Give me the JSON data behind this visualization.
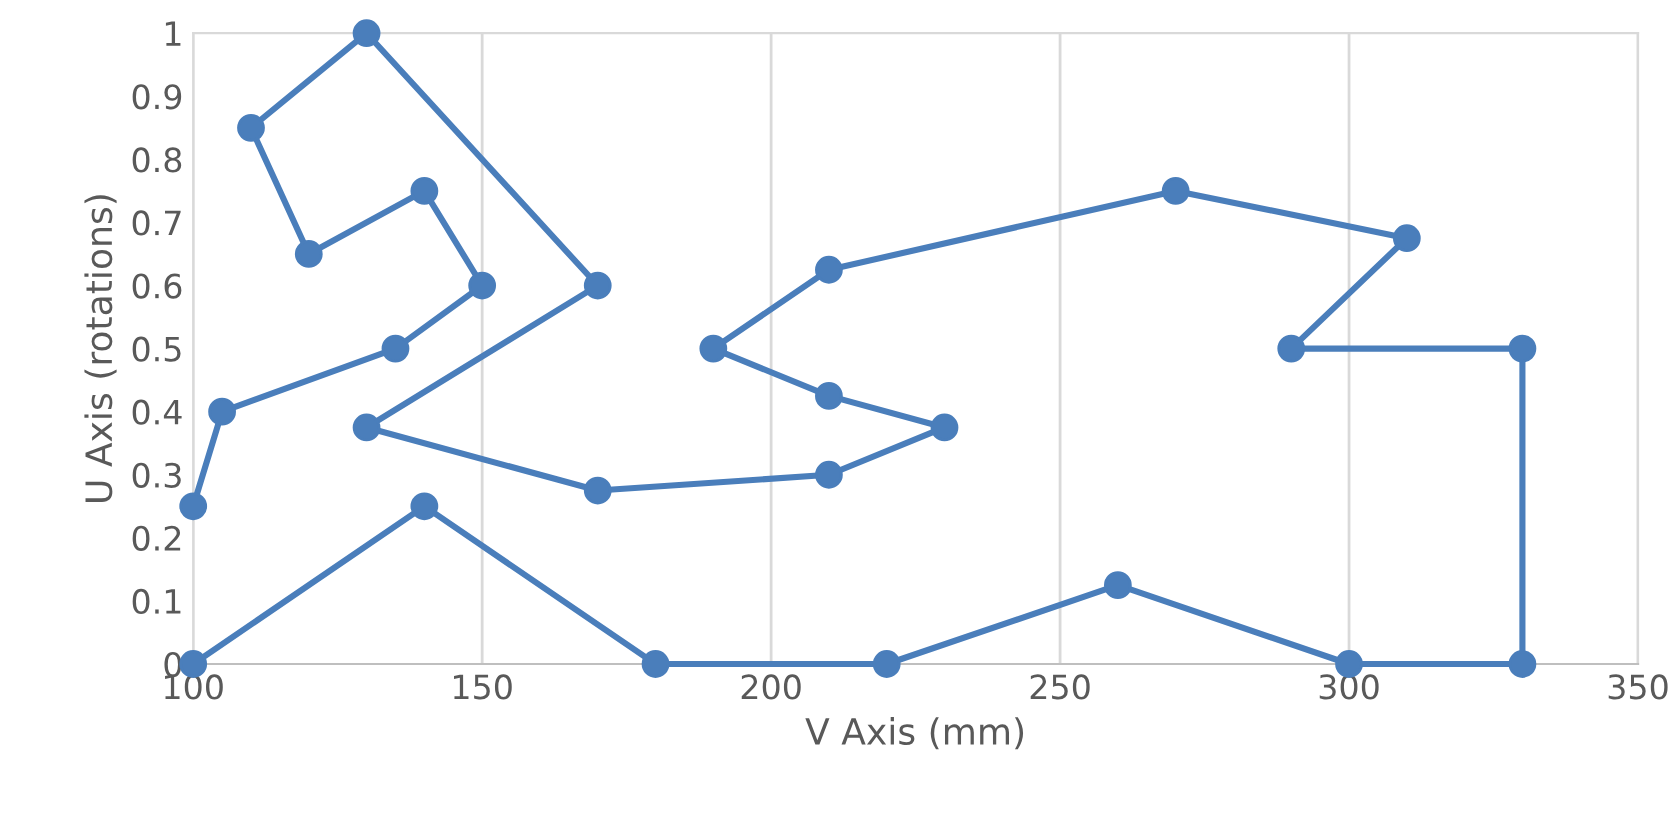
{
  "chart_data": {
    "type": "line",
    "xlabel": "V Axis (mm)",
    "ylabel": "U Axis (rotations)",
    "x": [
      100,
      140,
      180,
      220,
      260,
      300,
      330,
      330,
      290,
      310,
      270,
      210,
      190,
      210,
      230,
      210,
      170,
      130,
      170,
      130,
      110,
      120,
      140,
      150,
      135,
      105,
      100
    ],
    "series": [
      {
        "color": "#4a7ebb",
        "values": [
          0,
          0.25,
          0,
          0,
          0.125,
          0,
          0,
          0.5,
          0.5,
          0.675,
          0.75,
          0.625,
          0.5,
          0.425,
          0.375,
          0.3,
          0.275,
          0.375,
          0.6,
          1,
          0.85,
          0.65,
          0.75,
          0.6,
          0.5,
          0.4,
          0.25
        ]
      }
    ],
    "xlim": [
      100,
      350
    ],
    "xticks": [
      100,
      150,
      200,
      250,
      300,
      350
    ],
    "ylim": [
      0,
      1
    ],
    "yticks": [
      0,
      0.1,
      0.2,
      0.3,
      0.4,
      0.5,
      0.6,
      0.7,
      0.8,
      0.9,
      1
    ],
    "grid": "x",
    "marker": "circle",
    "line_style": "solid",
    "legend": false
  }
}
